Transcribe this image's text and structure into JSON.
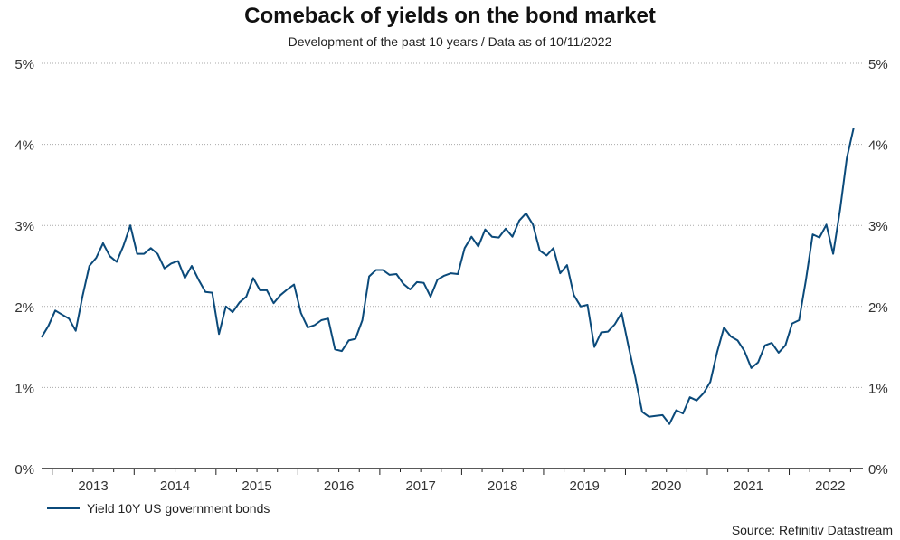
{
  "chart_data": {
    "type": "line",
    "title": "Comeback of yields on the bond market",
    "subtitle": "Development of the past 10 years / Data as of 10/11/2022",
    "xlabel": "",
    "ylabel": "",
    "y_ticks": [
      "0%",
      "1%",
      "2%",
      "3%",
      "4%",
      "5%"
    ],
    "ylim": [
      0,
      5
    ],
    "x_tick_labels": [
      "2013",
      "2014",
      "2015",
      "2016",
      "2017",
      "2018",
      "2019",
      "2020",
      "2021",
      "2022"
    ],
    "xlim": [
      2012.87,
      2022.9
    ],
    "grid": true,
    "legend_position": "bottom-left",
    "series": [
      {
        "name": "Yield 10Y US government bonds",
        "color": "#0b4a7a",
        "start": 2012.87,
        "step_months": 1,
        "values": [
          1.62,
          1.76,
          1.95,
          1.9,
          1.85,
          1.7,
          2.13,
          2.5,
          2.6,
          2.78,
          2.62,
          2.55,
          2.75,
          3.0,
          2.65,
          2.65,
          2.72,
          2.65,
          2.47,
          2.53,
          2.56,
          2.35,
          2.5,
          2.33,
          2.18,
          2.17,
          1.66,
          2.0,
          1.93,
          2.05,
          2.12,
          2.35,
          2.2,
          2.2,
          2.04,
          2.14,
          2.21,
          2.27,
          1.92,
          1.74,
          1.77,
          1.83,
          1.85,
          1.47,
          1.45,
          1.58,
          1.6,
          1.83,
          2.37,
          2.45,
          2.45,
          2.39,
          2.4,
          2.28,
          2.21,
          2.3,
          2.29,
          2.12,
          2.33,
          2.38,
          2.41,
          2.4,
          2.72,
          2.86,
          2.74,
          2.95,
          2.86,
          2.85,
          2.96,
          2.86,
          3.06,
          3.15,
          3.01,
          2.69,
          2.63,
          2.72,
          2.41,
          2.51,
          2.14,
          2.0,
          2.02,
          1.5,
          1.68,
          1.69,
          1.78,
          1.92,
          1.51,
          1.13,
          0.7,
          0.64,
          0.65,
          0.66,
          0.55,
          0.72,
          0.68,
          0.88,
          0.84,
          0.93,
          1.07,
          1.44,
          1.74,
          1.63,
          1.58,
          1.45,
          1.24,
          1.31,
          1.52,
          1.55,
          1.43,
          1.52,
          1.79,
          1.83,
          2.32,
          2.89,
          2.85,
          3.01,
          2.65,
          3.19,
          3.83,
          4.2
        ]
      }
    ],
    "source": "Source: Refinitiv Datastream"
  }
}
